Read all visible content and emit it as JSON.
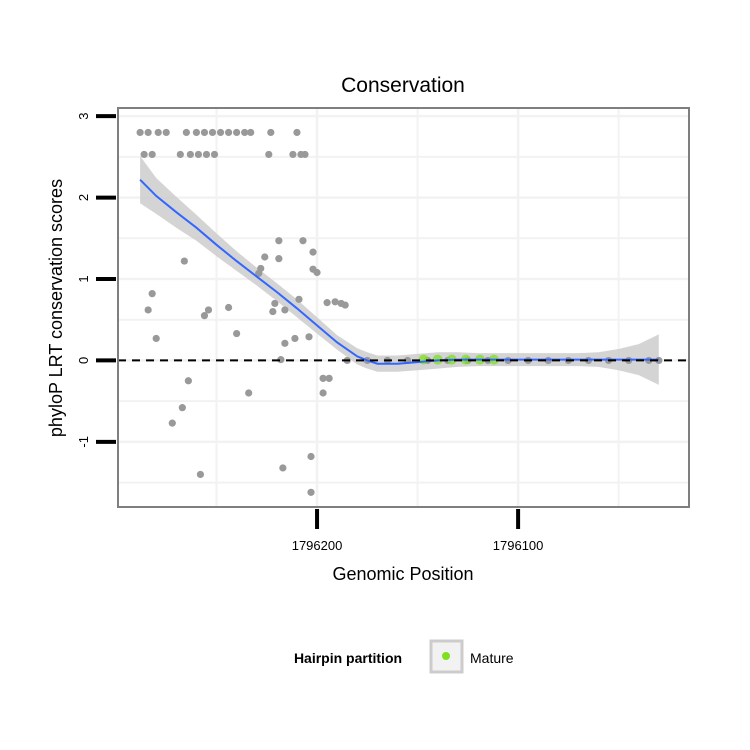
{
  "chart_data": {
    "type": "scatter",
    "title": "Conservation",
    "xlabel": "Genomic Position",
    "ylabel": "phyloP LRT conservation scores",
    "x_reversed": true,
    "xlim": [
      1796299,
      1796015
    ],
    "ylim": [
      -1.8,
      3.1
    ],
    "x_ticks": [
      1796200,
      1796100
    ],
    "y_ticks": [
      -1,
      0,
      1,
      2,
      3
    ],
    "y_tick_labels": [
      "-1",
      "0",
      "1",
      "2",
      "3"
    ],
    "reference_line_y": 0,
    "legend": {
      "title": "Hairpin partition",
      "entries": [
        {
          "label": "Mature",
          "color": "#7FE01E"
        }
      ],
      "position": "bottom"
    },
    "colors": {
      "points": "#999999",
      "mature": "#7FE01E",
      "smooth_line": "#3366FF",
      "ribbon": "#CCCCCC",
      "grid": "#F2F2F2",
      "panel_border": "#7F7F7F",
      "reference_line": "#000000"
    },
    "series": [
      {
        "name": "scores",
        "points": [
          [
            1796288,
            2.8
          ],
          [
            1796284,
            2.8
          ],
          [
            1796279,
            2.8
          ],
          [
            1796275,
            2.8
          ],
          [
            1796265,
            2.8
          ],
          [
            1796260,
            2.8
          ],
          [
            1796256,
            2.8
          ],
          [
            1796252,
            2.8
          ],
          [
            1796248,
            2.8
          ],
          [
            1796244,
            2.8
          ],
          [
            1796240,
            2.8
          ],
          [
            1796236,
            2.8
          ],
          [
            1796233,
            2.8
          ],
          [
            1796223,
            2.8
          ],
          [
            1796210,
            2.8
          ],
          [
            1796286,
            2.53
          ],
          [
            1796282,
            2.53
          ],
          [
            1796268,
            2.53
          ],
          [
            1796263,
            2.53
          ],
          [
            1796259,
            2.53
          ],
          [
            1796255,
            2.53
          ],
          [
            1796251,
            2.53
          ],
          [
            1796224,
            2.53
          ],
          [
            1796212,
            2.53
          ],
          [
            1796208,
            2.53
          ],
          [
            1796206,
            2.53
          ],
          [
            1796207,
            1.47
          ],
          [
            1796219,
            1.47
          ],
          [
            1796202,
            1.33
          ],
          [
            1796226,
            1.27
          ],
          [
            1796219,
            1.25
          ],
          [
            1796266,
            1.22
          ],
          [
            1796228,
            1.13
          ],
          [
            1796202,
            1.12
          ],
          [
            1796200,
            1.08
          ],
          [
            1796229,
            1.07
          ],
          [
            1796282,
            0.82
          ],
          [
            1796209,
            0.75
          ],
          [
            1796195,
            0.71
          ],
          [
            1796191,
            0.72
          ],
          [
            1796221,
            0.7
          ],
          [
            1796188,
            0.7
          ],
          [
            1796186,
            0.68
          ],
          [
            1796244,
            0.65
          ],
          [
            1796284,
            0.62
          ],
          [
            1796254,
            0.62
          ],
          [
            1796216,
            0.62
          ],
          [
            1796222,
            0.6
          ],
          [
            1796256,
            0.55
          ],
          [
            1796280,
            0.27
          ],
          [
            1796240,
            0.33
          ],
          [
            1796204,
            0.29
          ],
          [
            1796211,
            0.27
          ],
          [
            1796216,
            0.21
          ],
          [
            1796218,
            0.01
          ],
          [
            1796185,
            0
          ],
          [
            1796175,
            0
          ],
          [
            1796165,
            0
          ],
          [
            1796155,
            0
          ],
          [
            1796145,
            0
          ],
          [
            1796135,
            0
          ],
          [
            1796125,
            0
          ],
          [
            1796115,
            0
          ],
          [
            1796105,
            0
          ],
          [
            1796095,
            0
          ],
          [
            1796085,
            0
          ],
          [
            1796075,
            0
          ],
          [
            1796065,
            0
          ],
          [
            1796055,
            0
          ],
          [
            1796045,
            0
          ],
          [
            1796035,
            0
          ],
          [
            1796030,
            0
          ],
          [
            1796197,
            -0.22
          ],
          [
            1796194,
            -0.22
          ],
          [
            1796264,
            -0.25
          ],
          [
            1796234,
            -0.4
          ],
          [
            1796197,
            -0.4
          ],
          [
            1796267,
            -0.58
          ],
          [
            1796272,
            -0.77
          ],
          [
            1796203,
            -1.18
          ],
          [
            1796258,
            -1.4
          ],
          [
            1796217,
            -1.32
          ],
          [
            1796203,
            -1.62
          ]
        ]
      },
      {
        "name": "Mature",
        "points": [
          [
            1796147,
            0.01
          ],
          [
            1796140,
            0.01
          ],
          [
            1796133,
            0.01
          ],
          [
            1796126,
            0.01
          ],
          [
            1796119,
            0.01
          ],
          [
            1796112,
            0.01
          ]
        ]
      }
    ],
    "smooth_fit": {
      "method": "loess",
      "x": [
        1796288,
        1796280,
        1796270,
        1796260,
        1796250,
        1796240,
        1796230,
        1796220,
        1796210,
        1796200,
        1796190,
        1796180,
        1796175,
        1796170,
        1796160,
        1796150,
        1796140,
        1796130,
        1796120,
        1796110,
        1796100,
        1796090,
        1796080,
        1796070,
        1796060,
        1796050,
        1796040,
        1796030
      ],
      "y": [
        2.22,
        2.02,
        1.82,
        1.63,
        1.42,
        1.22,
        1.03,
        0.84,
        0.64,
        0.43,
        0.22,
        0.05,
        0.0,
        -0.04,
        -0.04,
        -0.02,
        0.0,
        0.01,
        0.01,
        0.01,
        0.01,
        0.01,
        0.01,
        0.01,
        0.01,
        0.01,
        0.01,
        0.01
      ],
      "ci_lower": [
        1.93,
        1.8,
        1.63,
        1.47,
        1.28,
        1.1,
        0.92,
        0.73,
        0.53,
        0.33,
        0.13,
        -0.05,
        -0.1,
        -0.14,
        -0.14,
        -0.12,
        -0.1,
        -0.08,
        -0.07,
        -0.07,
        -0.07,
        -0.07,
        -0.07,
        -0.07,
        -0.08,
        -0.12,
        -0.18,
        -0.3
      ],
      "ci_upper": [
        2.51,
        2.24,
        2.01,
        1.79,
        1.56,
        1.34,
        1.14,
        0.95,
        0.75,
        0.53,
        0.31,
        0.15,
        0.1,
        0.06,
        0.06,
        0.08,
        0.1,
        0.1,
        0.09,
        0.09,
        0.09,
        0.09,
        0.09,
        0.09,
        0.1,
        0.14,
        0.2,
        0.32
      ]
    }
  }
}
